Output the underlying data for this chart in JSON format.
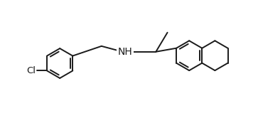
{
  "background_color": "#ffffff",
  "line_color": "#1a1a1a",
  "line_width": 1.4,
  "font_size": 9.5,
  "figsize": [
    3.63,
    1.87
  ],
  "dpi": 100,
  "xlim": [
    0,
    10
  ],
  "ylim": [
    0,
    5.15
  ]
}
